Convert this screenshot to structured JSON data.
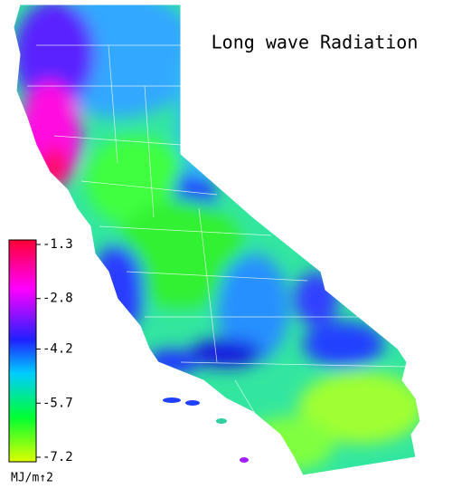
{
  "title": "Long wave Radiation",
  "colorbar": {
    "lim": [
      -7.2,
      -1.3
    ],
    "ticks": [
      -1.3,
      -2.8,
      -4.2,
      -5.7,
      -7.2
    ],
    "unit": "MJ/m↑2"
  }
}
